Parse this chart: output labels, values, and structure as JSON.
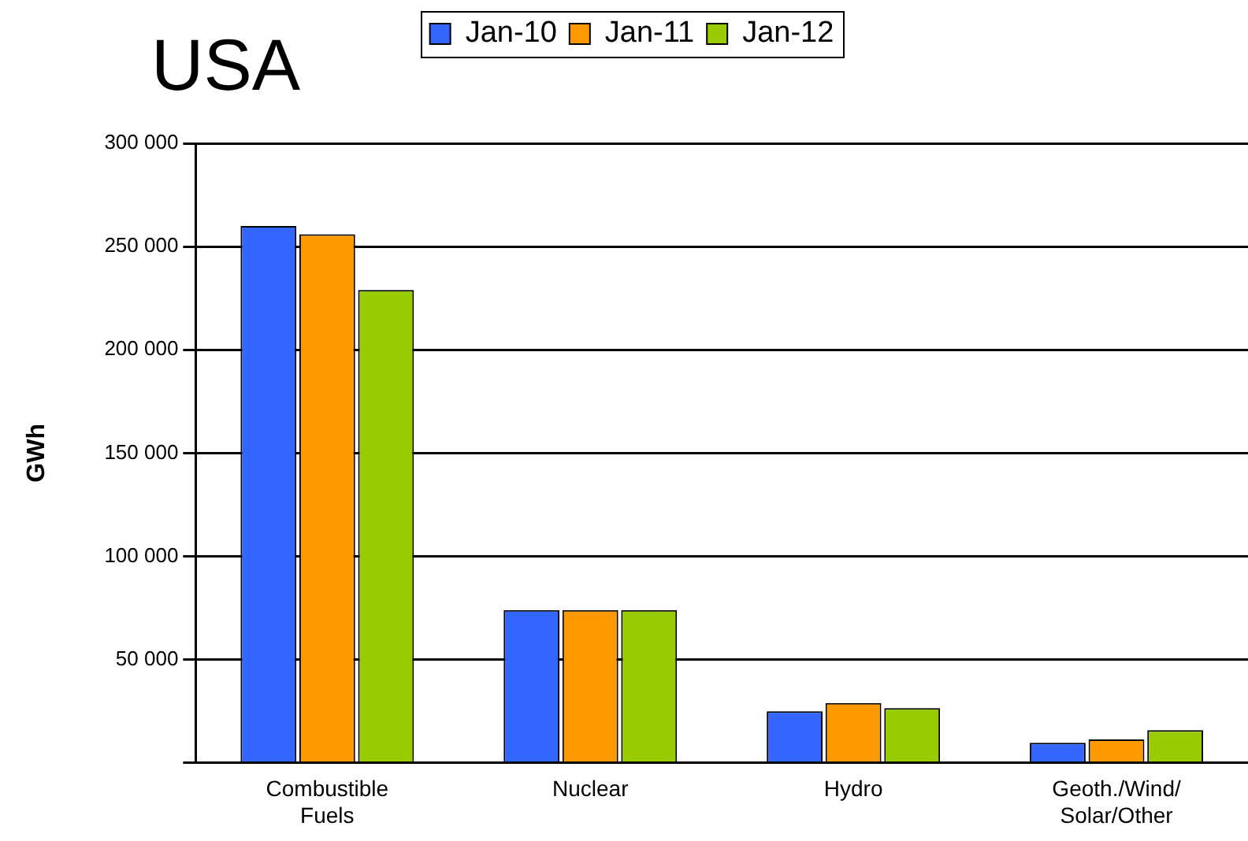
{
  "chart_data": {
    "type": "bar",
    "title": "USA",
    "ylabel": "GWh",
    "categories": [
      "Combustible\nFuels",
      "Nuclear",
      "Hydro",
      "Geoth./Wind/\nSolar/Other"
    ],
    "series": [
      {
        "name": "Jan-10",
        "color": "#3366ff",
        "values": [
          260000,
          74000,
          25000,
          9700
        ]
      },
      {
        "name": "Jan-11",
        "color": "#ff9900",
        "values": [
          256000,
          74000,
          29000,
          11400
        ]
      },
      {
        "name": "Jan-12",
        "color": "#99cc00",
        "values": [
          229000,
          74000,
          26500,
          15800
        ]
      }
    ],
    "ylim": [
      0,
      300000
    ],
    "yticks": [
      {
        "value": 0,
        "label": null
      },
      {
        "value": 50000,
        "label": "50 000"
      },
      {
        "value": 100000,
        "label": "100 000"
      },
      {
        "value": 150000,
        "label": "150 000"
      },
      {
        "value": 200000,
        "label": "200 000"
      },
      {
        "value": 250000,
        "label": "250 000"
      },
      {
        "value": 300000,
        "label": "300 000"
      }
    ],
    "grid": "y",
    "legend": "top"
  }
}
